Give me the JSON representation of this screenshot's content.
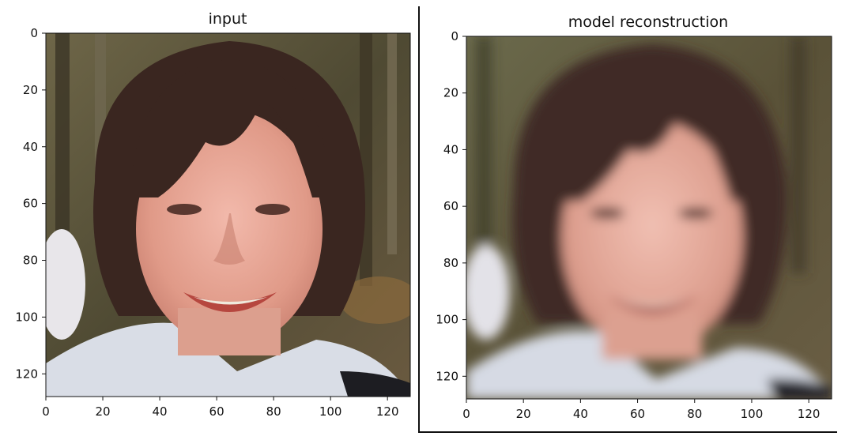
{
  "chart_data": [
    {
      "type": "image",
      "title": "input",
      "xlim": [
        0,
        128
      ],
      "ylim": [
        128,
        0
      ],
      "xticks": [
        "0",
        "20",
        "40",
        "60",
        "80",
        "100",
        "120"
      ],
      "yticks": [
        "0",
        "20",
        "40",
        "60",
        "80",
        "100",
        "120"
      ],
      "image_description_icon": "face-photo-sharp"
    },
    {
      "type": "image",
      "title": "model reconstruction",
      "xlim": [
        0,
        128
      ],
      "ylim": [
        128,
        0
      ],
      "xticks": [
        "0",
        "20",
        "40",
        "60",
        "80",
        "100",
        "120"
      ],
      "yticks": [
        "0",
        "20",
        "40",
        "60",
        "80",
        "100",
        "120"
      ],
      "image_description_icon": "face-photo-blurred"
    }
  ],
  "colors": {
    "hair": "#3a2620",
    "skin": "#e6a89a",
    "background_trees": "#5a5038",
    "collar": "#d8dce6"
  }
}
